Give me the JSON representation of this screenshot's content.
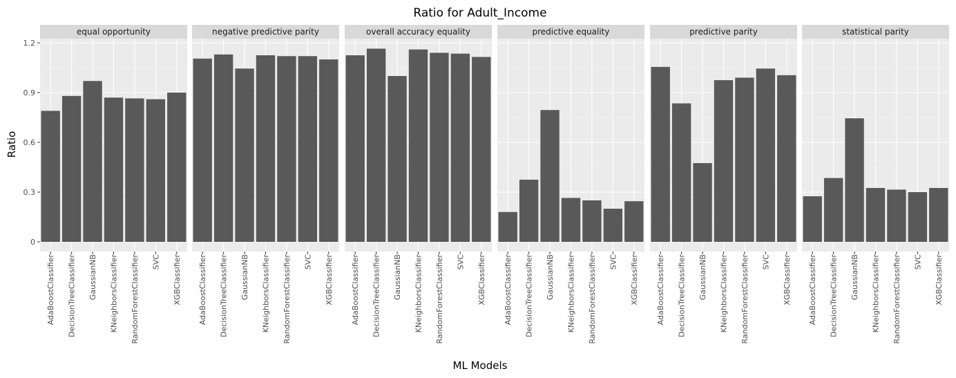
{
  "chart_data": {
    "type": "bar",
    "title": "Ratio for Adult_Income",
    "xlabel": "ML Models",
    "ylabel": "Ratio",
    "ylim": [
      0,
      1.2
    ],
    "yticks": [
      0,
      0.3,
      0.6,
      0.9,
      1.2
    ],
    "ytick_labels": [
      "0",
      "0.3",
      "0.6",
      "0.9",
      "1.2"
    ],
    "grid": true,
    "legend": "none",
    "categories": [
      "AdaBoostClassifier",
      "DecisionTreeClassifier",
      "GaussianNB",
      "KNeighborsClassifier",
      "RandomForestClassifier",
      "SVC",
      "XGBClassifier"
    ],
    "facets": [
      {
        "name": "equal opportunity",
        "values": [
          0.79,
          0.88,
          0.97,
          0.87,
          0.865,
          0.86,
          0.9
        ]
      },
      {
        "name": "negative predictive parity",
        "values": [
          1.105,
          1.13,
          1.045,
          1.125,
          1.12,
          1.12,
          1.1
        ]
      },
      {
        "name": "overall accuracy equality",
        "values": [
          1.125,
          1.165,
          1.0,
          1.16,
          1.14,
          1.135,
          1.115
        ]
      },
      {
        "name": "predictive equality",
        "values": [
          0.18,
          0.375,
          0.795,
          0.265,
          0.25,
          0.2,
          0.245
        ]
      },
      {
        "name": "predictive parity",
        "values": [
          1.055,
          0.835,
          0.475,
          0.975,
          0.99,
          1.045,
          1.005
        ]
      },
      {
        "name": "statistical parity",
        "values": [
          0.275,
          0.385,
          0.745,
          0.325,
          0.315,
          0.3,
          0.325
        ]
      }
    ]
  },
  "colors": {
    "bar": "#595959",
    "panel_background": "#ebebeb",
    "strip_background": "#d9d9d9",
    "grid_major": "#ffffff",
    "tick_text": "#4d4d4d"
  }
}
